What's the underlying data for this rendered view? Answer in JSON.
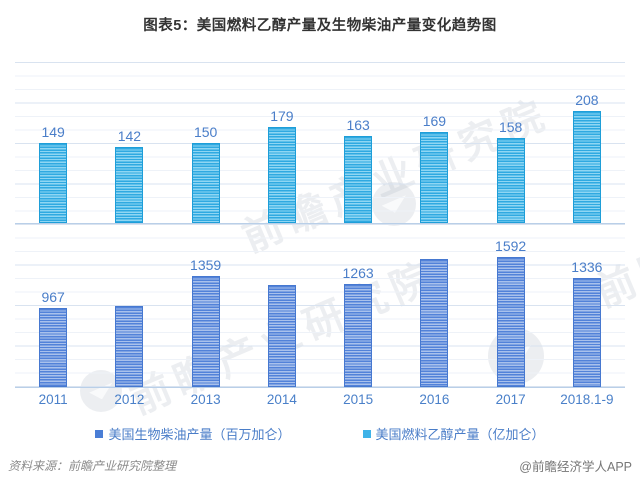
{
  "title": "图表5：美国燃料乙醇产量及生物柴油产量变化趋势图",
  "chart_data": {
    "type": "bar",
    "layout": "two stacked panels sharing x categories, no y-axis labels, light horizontal gridlines",
    "categories": [
      "2011",
      "2012",
      "2013",
      "2014",
      "2015",
      "2016",
      "2017",
      "2018.1-9"
    ],
    "series": [
      {
        "name": "美国燃料乙醇产量（亿加仑）",
        "panel": "top",
        "values": [
          149,
          142,
          150,
          179,
          163,
          169,
          158,
          208
        ],
        "data_labels": [
          "149",
          "142",
          "150",
          "179",
          "163",
          "169",
          "158",
          "208"
        ],
        "ylim": [
          0,
          300
        ],
        "color_dark": "#2fa9e1",
        "color_light": "#8fd6f3",
        "color_border": "#1e9ed8"
      },
      {
        "name": "美国生物柴油产量（百万加仑）",
        "panel": "bottom",
        "values": [
          967,
          990,
          1359,
          1250,
          1263,
          1570,
          1592,
          1336
        ],
        "data_labels": [
          "967",
          "",
          "1359",
          "",
          "1263",
          "",
          "1592",
          "1336"
        ],
        "ylim": [
          0,
          2000
        ],
        "color_dark": "#5282d9",
        "color_light": "#a9c1ec",
        "color_border": "#4678d0"
      }
    ],
    "grid": true,
    "legend_position": "bottom"
  },
  "legend": {
    "items": [
      {
        "label": "美国生物柴油产量（百万加仑）",
        "color": "#4a7ed6"
      },
      {
        "label": "美国燃料乙醇产量（亿加仑）",
        "color": "#3fb3e8"
      }
    ]
  },
  "footer": {
    "source": "资料来源：前瞻产业研究院整理",
    "brand": "@前瞻经济学人APP"
  },
  "watermark": {
    "text": "前瞻产业研究院",
    "side_text": "前瞻经济学人"
  },
  "colors": {
    "title_text": "#333333",
    "value_label_text": "#4a7ec9",
    "axis_label_text": "#4a80c9",
    "gridline_minor": "#eef2f8",
    "gridline_major": "#d9e3f0",
    "baseline": "#b9cfe8",
    "source_text": "#8b8b8b",
    "brand_text": "#777777"
  }
}
